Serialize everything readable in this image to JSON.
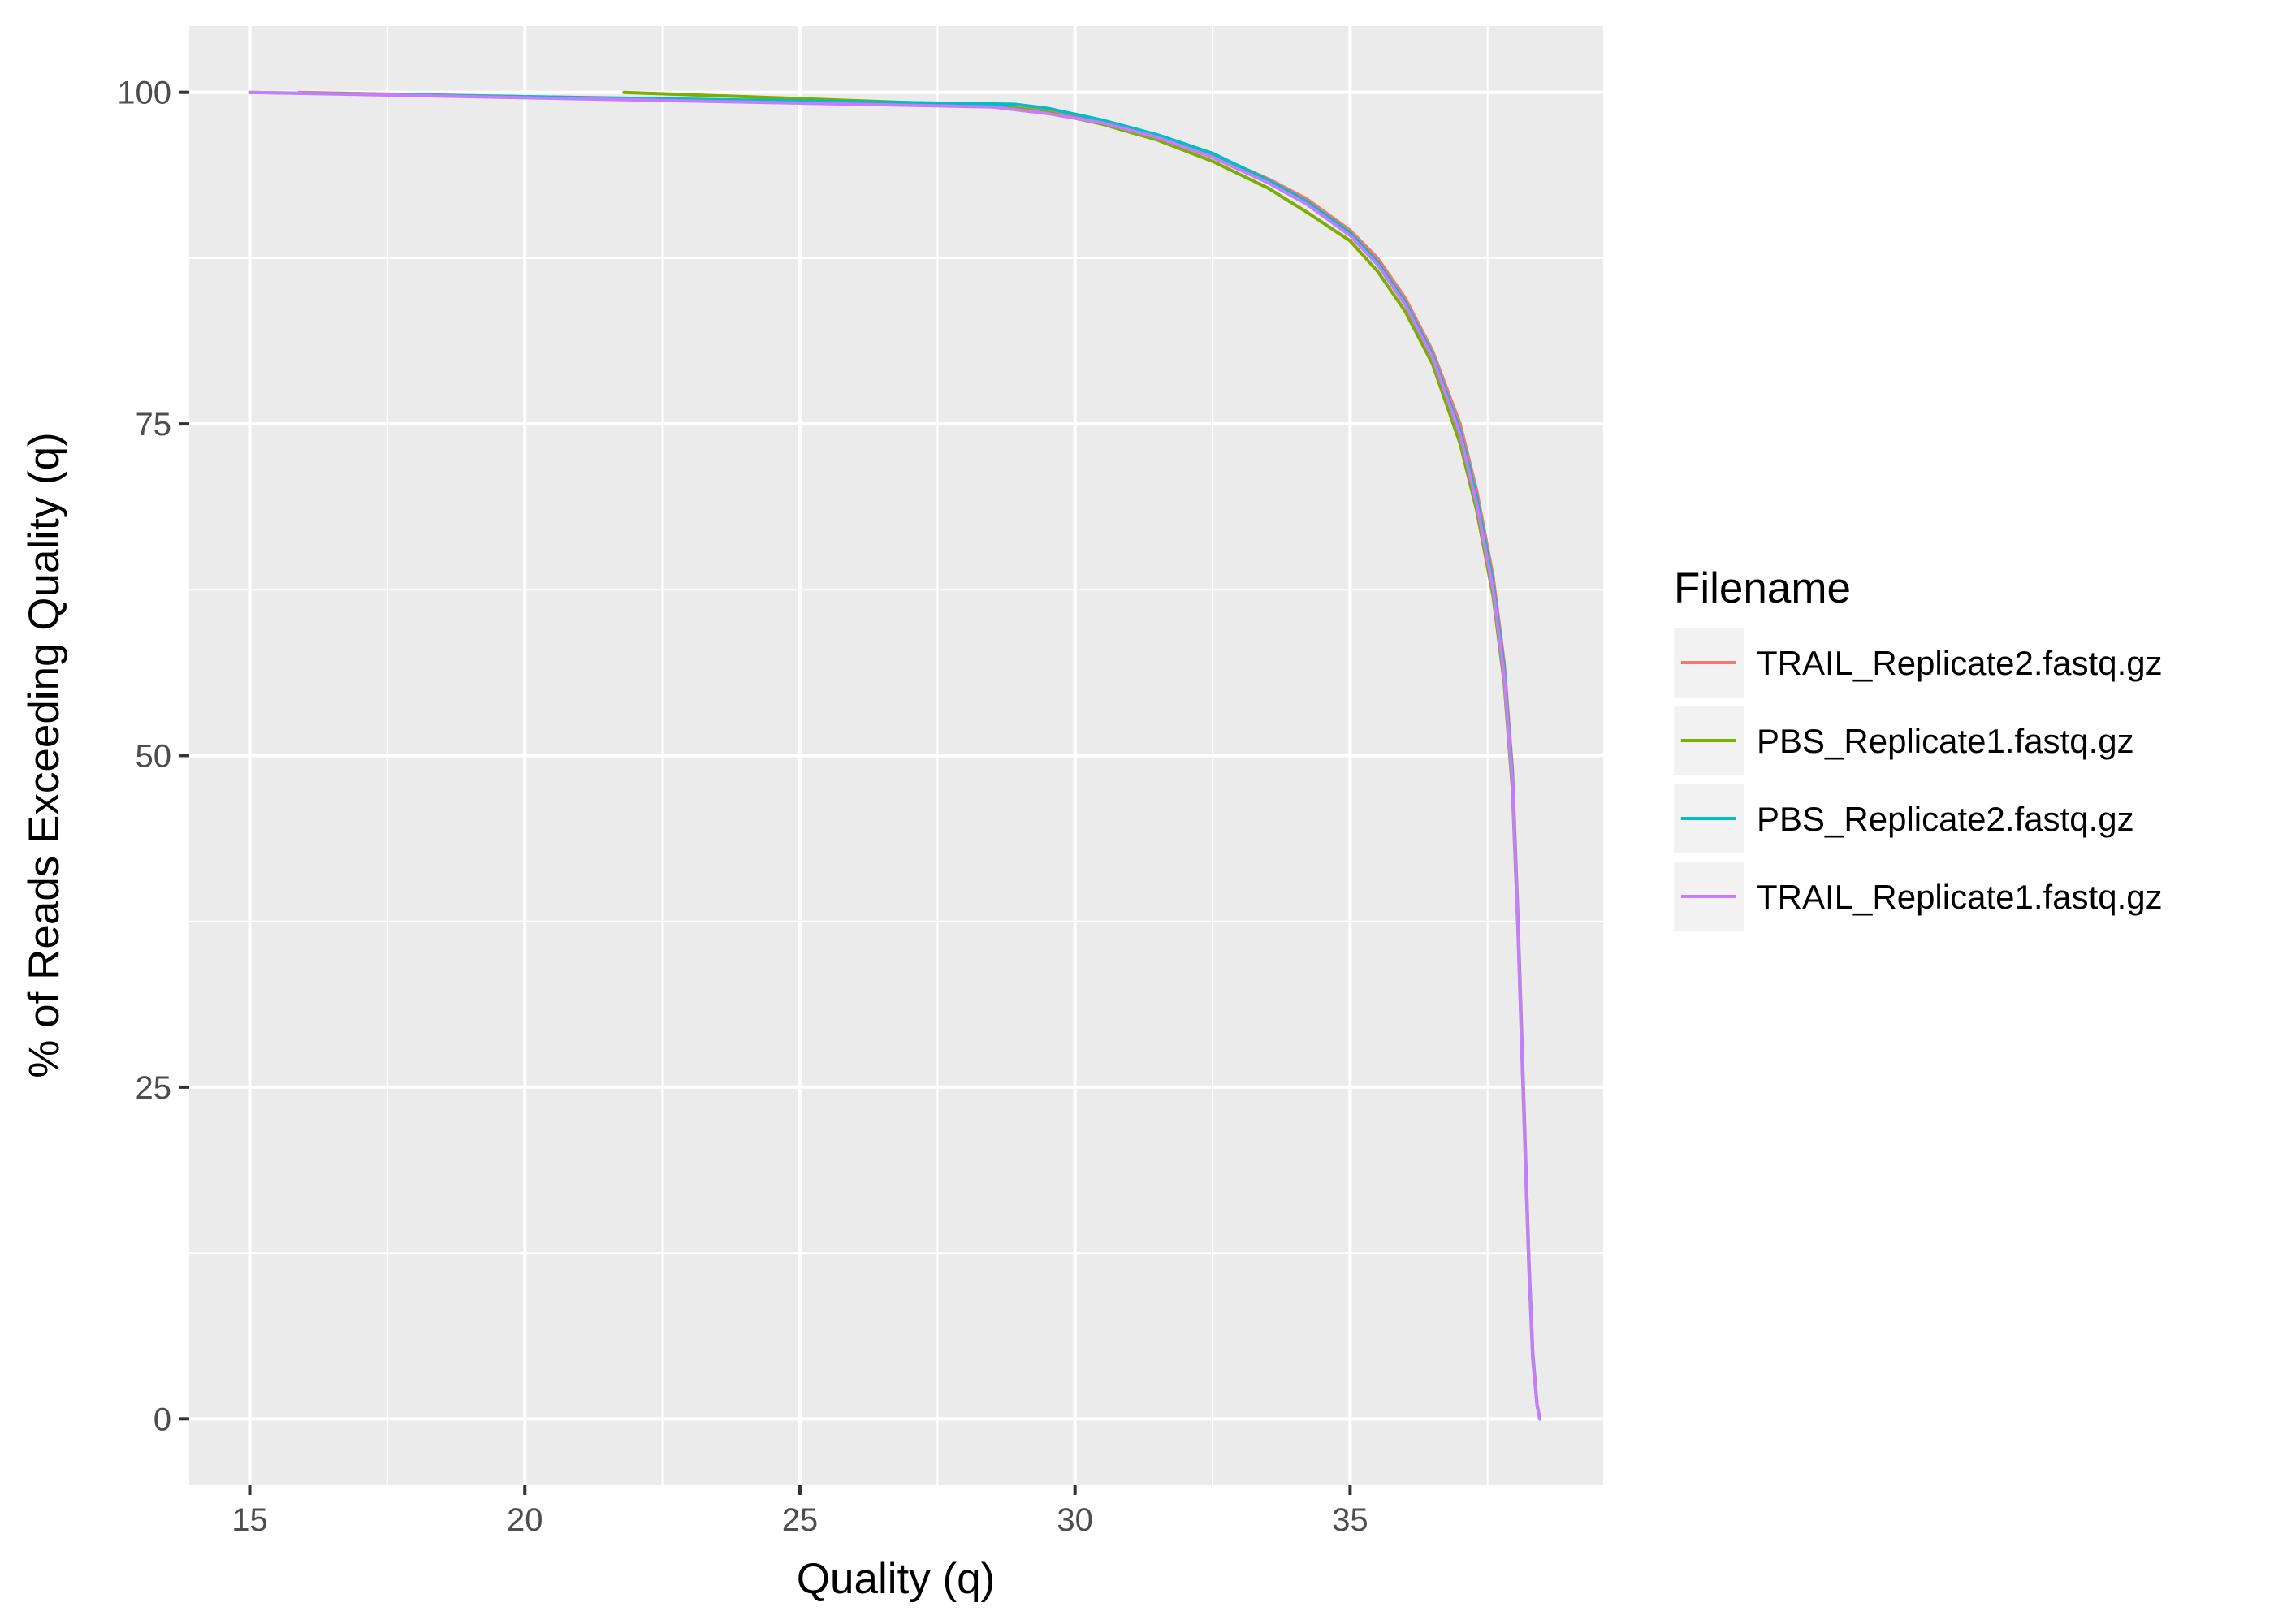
{
  "chart_data": {
    "type": "line",
    "title": "",
    "xlabel": "Quality (q)",
    "ylabel": "% of Reads Exceeding Quality (q)",
    "xlim": [
      13.9,
      39.6
    ],
    "ylim": [
      -5,
      105
    ],
    "x_ticks": [
      15,
      20,
      25,
      30,
      35
    ],
    "y_ticks": [
      0,
      25,
      50,
      75,
      100
    ],
    "x_minor_ticks": [
      17.5,
      22.5,
      27.5,
      32.5,
      37.5
    ],
    "y_minor_ticks": [
      12.5,
      37.5,
      62.5,
      87.5
    ],
    "grid": true,
    "panel_background": "#ebebeb",
    "grid_color": "#ffffff",
    "legend": {
      "title": "Filename",
      "position": "right",
      "key_background": "#f2f2f2"
    },
    "series": [
      {
        "name": "TRAIL_Replicate2.fastq.gz",
        "color": "#f8766d",
        "x": [
          15.9,
          28.5,
          29.5,
          30.5,
          31.5,
          32.5,
          33.5,
          34.2,
          35.0,
          35.5,
          36.0,
          36.5,
          37.0,
          37.3,
          37.6,
          37.8,
          37.95,
          38.05,
          38.15,
          38.25,
          38.32,
          38.4,
          38.45
        ],
        "y": [
          100,
          99.0,
          98.6,
          97.8,
          96.7,
          95.3,
          93.5,
          92.0,
          89.6,
          87.5,
          84.5,
          80.5,
          75.0,
          70.0,
          63.5,
          57.0,
          49.0,
          38.0,
          25.0,
          12.0,
          5.0,
          1.0,
          0
        ]
      },
      {
        "name": "PBS_Replicate1.fastq.gz",
        "color": "#7cae00",
        "x": [
          21.8,
          28.5,
          29.5,
          30.5,
          31.5,
          32.5,
          33.5,
          34.2,
          35.0,
          35.5,
          36.0,
          36.5,
          37.0,
          37.3,
          37.6,
          37.8,
          37.95,
          38.05,
          38.15,
          38.25,
          38.32,
          38.4,
          38.45
        ],
        "y": [
          100,
          99.0,
          98.5,
          97.6,
          96.4,
          94.8,
          92.8,
          91.0,
          88.8,
          86.5,
          83.5,
          79.5,
          73.5,
          68.5,
          62.0,
          55.5,
          47.5,
          37.0,
          24.0,
          11.5,
          4.5,
          1.0,
          0
        ]
      },
      {
        "name": "PBS_Replicate2.fastq.gz",
        "color": "#00bfc4",
        "x": [
          15.0,
          28.9,
          29.5,
          30.5,
          31.5,
          32.5,
          33.5,
          34.2,
          35.0,
          35.5,
          36.0,
          36.5,
          37.0,
          37.3,
          37.6,
          37.8,
          37.95,
          38.05,
          38.15,
          38.25,
          38.32,
          38.4,
          38.45
        ],
        "y": [
          100,
          99.1,
          98.8,
          97.9,
          96.8,
          95.4,
          93.4,
          91.8,
          89.4,
          87.2,
          84.2,
          80.2,
          74.5,
          69.5,
          63.0,
          56.5,
          48.5,
          37.5,
          24.5,
          12.0,
          4.8,
          1.0,
          0
        ]
      },
      {
        "name": "TRAIL_Replicate1.fastq.gz",
        "color": "#c77cff",
        "x": [
          15.0,
          28.5,
          29.5,
          30.5,
          31.5,
          32.5,
          33.5,
          34.2,
          35.0,
          35.5,
          36.0,
          36.5,
          37.0,
          37.3,
          37.6,
          37.8,
          37.95,
          38.05,
          38.15,
          38.25,
          38.32,
          38.4,
          38.45
        ],
        "y": [
          100,
          98.9,
          98.4,
          97.7,
          96.6,
          95.1,
          93.2,
          91.6,
          89.2,
          87.0,
          84.0,
          80.0,
          74.2,
          69.0,
          62.5,
          56.0,
          48.0,
          37.2,
          24.2,
          11.8,
          4.6,
          1.0,
          0
        ]
      }
    ]
  }
}
